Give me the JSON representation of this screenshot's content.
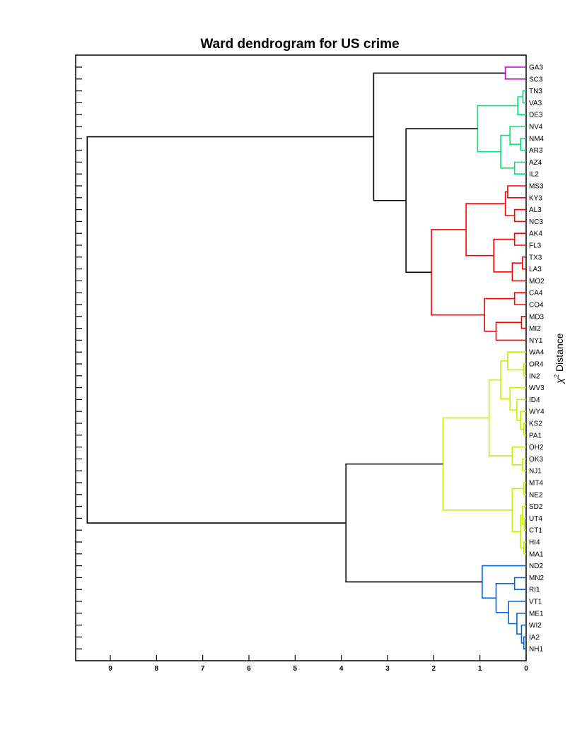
{
  "chart_data": {
    "type": "dendrogram",
    "title": "Ward dendrogram for US crime",
    "xlabel_symbol": "χ",
    "xlabel_sup": "2",
    "xlabel_text": " Distance",
    "xlim": [
      9.75,
      0
    ],
    "xticks": [
      9,
      8,
      7,
      6,
      5,
      4,
      3,
      2,
      1,
      0
    ],
    "leaves": [
      "GA3",
      "SC3",
      "TN3",
      "VA3",
      "DE3",
      "NV4",
      "NM4",
      "AR3",
      "AZ4",
      "IL2",
      "MS3",
      "KY3",
      "AL3",
      "NC3",
      "AK4",
      "FL3",
      "TX3",
      "LA3",
      "MO2",
      "CA4",
      "CO4",
      "MD3",
      "MI2",
      "NY1",
      "WA4",
      "OR4",
      "IN2",
      "WV3",
      "ID4",
      "WY4",
      "KS2",
      "PA1",
      "OH2",
      "OK3",
      "NJ1",
      "MT4",
      "NE2",
      "SD2",
      "UT4",
      "CT1",
      "HI4",
      "MA1",
      "ND2",
      "MN2",
      "RI1",
      "VT1",
      "ME1",
      "WI2",
      "IA2",
      "NH1"
    ],
    "colors": {
      "magenta": "#cc00cc",
      "green": "#00e676",
      "red": "#ff0000",
      "yellow": "#ccee00",
      "blue": "#0066dd",
      "black": "#000000"
    },
    "merges": [
      {
        "id": "c1",
        "a": "GA3",
        "b": "SC3",
        "h": 0.45,
        "color": "magenta"
      },
      {
        "id": "c2",
        "a": "TN3",
        "b": "VA3",
        "h": 0.07,
        "color": "green"
      },
      {
        "id": "c3",
        "a": "c2",
        "b": "DE3",
        "h": 0.18,
        "color": "green"
      },
      {
        "id": "c4",
        "a": "NM4",
        "b": "AR3",
        "h": 0.12,
        "color": "green"
      },
      {
        "id": "c5",
        "a": "NV4",
        "b": "c4",
        "h": 0.35,
        "color": "green"
      },
      {
        "id": "c6",
        "a": "AZ4",
        "b": "IL2",
        "h": 0.25,
        "color": "green"
      },
      {
        "id": "c7",
        "a": "c5",
        "b": "c6",
        "h": 0.55,
        "color": "green"
      },
      {
        "id": "c8",
        "a": "c3",
        "b": "c7",
        "h": 1.05,
        "color": "green"
      },
      {
        "id": "c9",
        "a": "MS3",
        "b": "KY3",
        "h": 0.4,
        "color": "red"
      },
      {
        "id": "c10",
        "a": "AL3",
        "b": "NC3",
        "h": 0.25,
        "color": "red"
      },
      {
        "id": "c11",
        "a": "c9",
        "b": "c10",
        "h": 0.45,
        "color": "red"
      },
      {
        "id": "c12",
        "a": "AK4",
        "b": "FL3",
        "h": 0.25,
        "color": "red"
      },
      {
        "id": "c13",
        "a": "TX3",
        "b": "LA3",
        "h": 0.08,
        "color": "red"
      },
      {
        "id": "c14",
        "a": "c13",
        "b": "MO2",
        "h": 0.3,
        "color": "red"
      },
      {
        "id": "c15",
        "a": "c12",
        "b": "c14",
        "h": 0.7,
        "color": "red"
      },
      {
        "id": "c16",
        "a": "c11",
        "b": "c15",
        "h": 1.3,
        "color": "red"
      },
      {
        "id": "c17",
        "a": "CA4",
        "b": "CO4",
        "h": 0.25,
        "color": "red"
      },
      {
        "id": "c18",
        "a": "MD3",
        "b": "MI2",
        "h": 0.1,
        "color": "red"
      },
      {
        "id": "c19",
        "a": "c18",
        "b": "NY1",
        "h": 0.65,
        "color": "red"
      },
      {
        "id": "c20",
        "a": "c17",
        "b": "c19",
        "h": 0.9,
        "color": "red"
      },
      {
        "id": "c21",
        "a": "c16",
        "b": "c20",
        "h": 2.05,
        "color": "red"
      },
      {
        "id": "c22",
        "a": "c8",
        "b": "c21",
        "h": 2.6,
        "color": "black"
      },
      {
        "id": "c23",
        "a": "c1",
        "b": "c22",
        "h": 3.3,
        "color": "black"
      },
      {
        "id": "c24",
        "a": "OR4",
        "b": "IN2",
        "h": 0.05,
        "color": "yellow"
      },
      {
        "id": "c25",
        "a": "WA4",
        "b": "c24",
        "h": 0.4,
        "color": "yellow"
      },
      {
        "id": "c26",
        "a": "KS2",
        "b": "PA1",
        "h": 0.05,
        "color": "yellow"
      },
      {
        "id": "c27",
        "a": "WY4",
        "b": "c26",
        "h": 0.12,
        "color": "yellow"
      },
      {
        "id": "c28",
        "a": "ID4",
        "b": "c27",
        "h": 0.2,
        "color": "yellow"
      },
      {
        "id": "c29",
        "a": "WV3",
        "b": "c28",
        "h": 0.35,
        "color": "yellow"
      },
      {
        "id": "c30",
        "a": "c25",
        "b": "c29",
        "h": 0.55,
        "color": "yellow"
      },
      {
        "id": "c31",
        "a": "OK3",
        "b": "NJ1",
        "h": 0.08,
        "color": "yellow"
      },
      {
        "id": "c32",
        "a": "OH2",
        "b": "c31",
        "h": 0.3,
        "color": "yellow"
      },
      {
        "id": "c33",
        "a": "c30",
        "b": "c32",
        "h": 0.8,
        "color": "yellow"
      },
      {
        "id": "c34",
        "a": "MT4",
        "b": "NE2",
        "h": 0.05,
        "color": "yellow"
      },
      {
        "id": "c35",
        "a": "UT4",
        "b": "CT1",
        "h": 0.04,
        "color": "yellow"
      },
      {
        "id": "c36",
        "a": "SD2",
        "b": "c35",
        "h": 0.08,
        "color": "yellow"
      },
      {
        "id": "c37",
        "a": "HI4",
        "b": "MA1",
        "h": 0.05,
        "color": "yellow"
      },
      {
        "id": "c38",
        "a": "c36",
        "b": "c37",
        "h": 0.12,
        "color": "yellow"
      },
      {
        "id": "c39",
        "a": "c34",
        "b": "c38",
        "h": 0.3,
        "color": "yellow"
      },
      {
        "id": "c40",
        "a": "c33",
        "b": "c39",
        "h": 1.8,
        "color": "yellow"
      },
      {
        "id": "c41",
        "a": "MN2",
        "b": "RI1",
        "h": 0.25,
        "color": "blue"
      },
      {
        "id": "c42",
        "a": "IA2",
        "b": "NH1",
        "h": 0.05,
        "color": "blue"
      },
      {
        "id": "c43",
        "a": "WI2",
        "b": "c42",
        "h": 0.1,
        "color": "blue"
      },
      {
        "id": "c44",
        "a": "ME1",
        "b": "c43",
        "h": 0.2,
        "color": "blue"
      },
      {
        "id": "c45",
        "a": "VT1",
        "b": "c44",
        "h": 0.38,
        "color": "blue"
      },
      {
        "id": "c46",
        "a": "c41",
        "b": "c45",
        "h": 0.65,
        "color": "blue"
      },
      {
        "id": "c47",
        "a": "ND2",
        "b": "c46",
        "h": 0.95,
        "color": "blue"
      },
      {
        "id": "c48",
        "a": "c40",
        "b": "c47",
        "h": 3.9,
        "color": "black"
      },
      {
        "id": "c49",
        "a": "c23",
        "b": "c48",
        "h": 9.5,
        "color": "black"
      }
    ]
  }
}
